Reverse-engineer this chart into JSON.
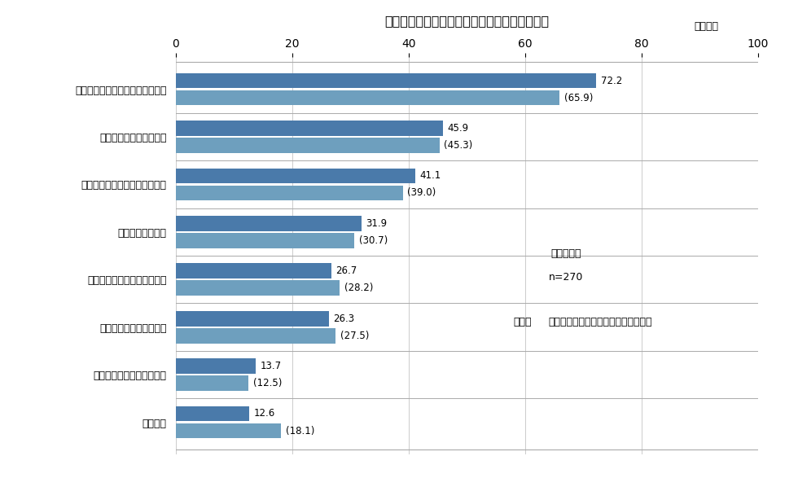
{
  "title": "本審査で重視度が増していると考えられる項目",
  "unit_label": "単位：％",
  "categories": [
    "返済負担率（毎月返済額／月収）",
    "職種、勤務先、雇用形態",
    "借入比率（借入額／担保価値）",
    "借入者の社会属性",
    "返済途上での返済能力の変化",
    "預貯金や資産の保有状況",
    "担保となる融資物件の時価",
    "特になし"
  ],
  "values1": [
    72.2,
    45.9,
    41.1,
    31.9,
    26.7,
    26.3,
    13.7,
    12.6
  ],
  "values2": [
    65.9,
    45.3,
    39.0,
    30.7,
    28.2,
    27.5,
    12.5,
    18.1
  ],
  "bar_color1": "#4a7aaa",
  "bar_color2": "#6e9fbe",
  "xlim": [
    0,
    100
  ],
  "xticks": [
    0,
    20,
    40,
    60,
    80,
    100
  ],
  "note_line1": "複数回答可",
  "note_line2": "n=270",
  "note_line3_part1": "（注）",
  "note_line3_part2": "括弧内は前回調査における回答構成比",
  "background_color": "#ffffff",
  "bar_height": 0.32,
  "fig_width": 9.8,
  "fig_height": 5.87
}
